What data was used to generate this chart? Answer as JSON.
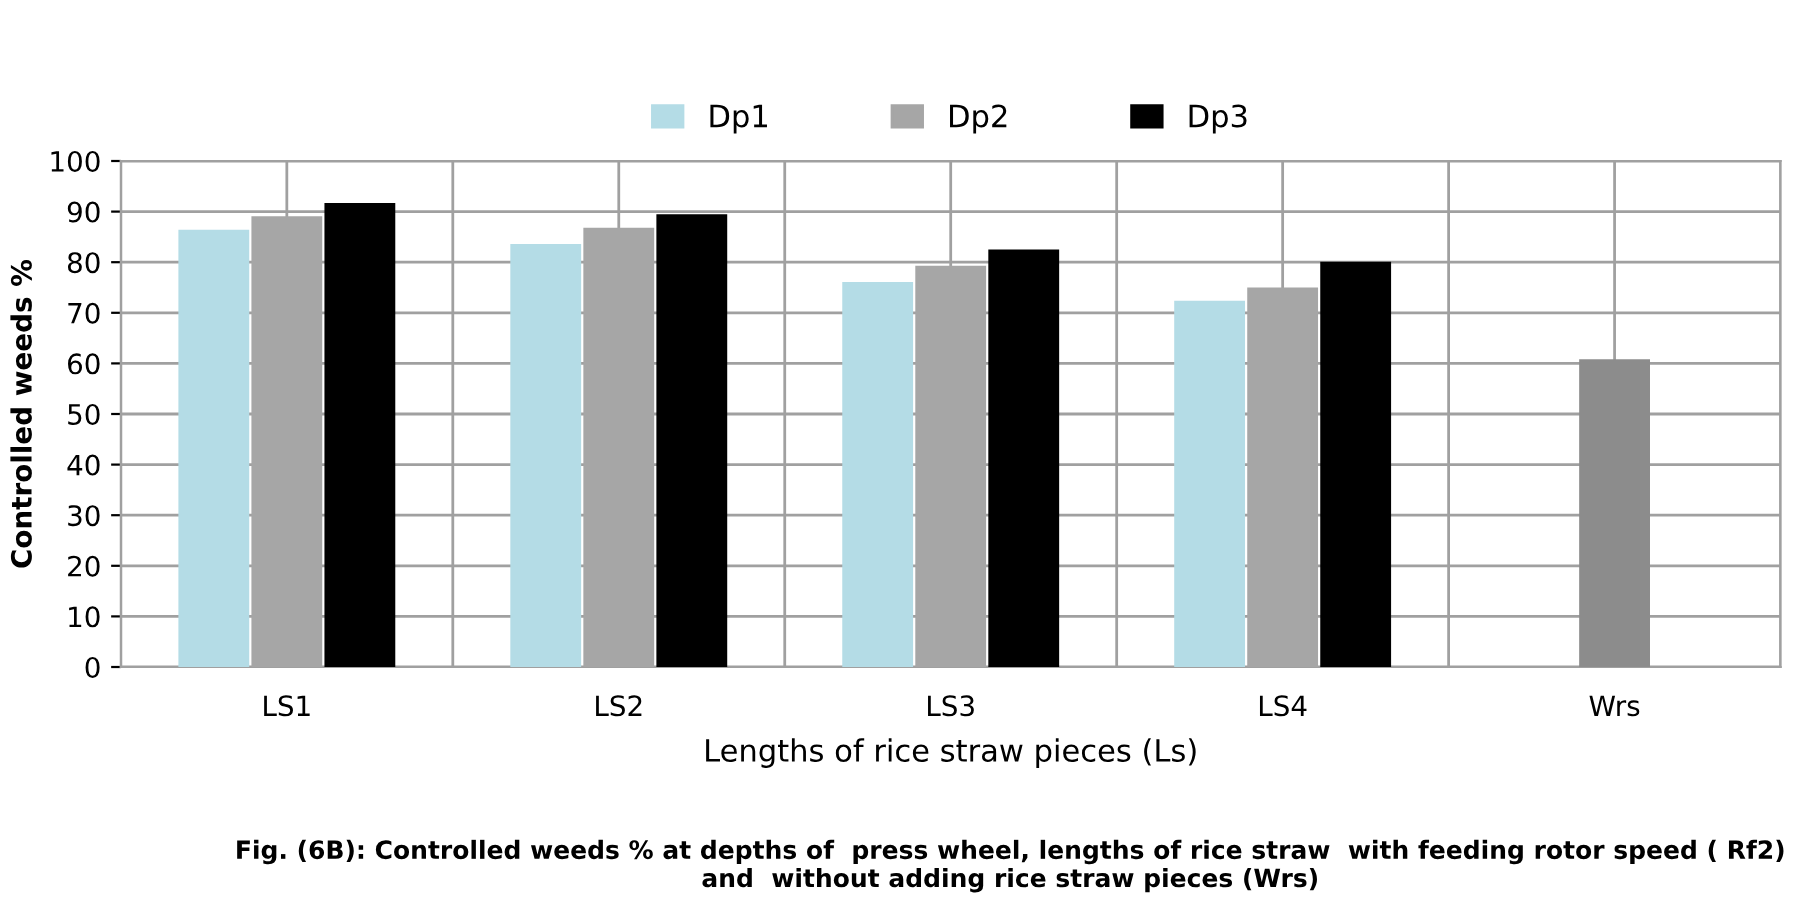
{
  "chart_data": {
    "type": "bar",
    "xlabel": "Lengths of rice straw pieces (Ls)",
    "ylabel": "Controlled weeds %",
    "categories": [
      "LS1",
      "LS2",
      "LS3",
      "LS4",
      "Wrs"
    ],
    "series": [
      {
        "name": "Dp1",
        "color": "#b4dce6",
        "values": [
          86.4,
          83.6,
          76.1,
          72.4,
          null
        ]
      },
      {
        "name": "Dp2",
        "color": "#a6a6a6",
        "colors": [
          "#a6a6a6",
          "#a6a6a6",
          "#a6a6a6",
          "#a6a6a6",
          "#8c8c8c"
        ],
        "values": [
          89.1,
          86.8,
          79.3,
          75.0,
          60.8
        ]
      },
      {
        "name": "Dp3",
        "color": "#000000",
        "values": [
          91.7,
          89.5,
          82.5,
          80.1,
          null
        ]
      }
    ],
    "ylim": [
      0,
      100
    ],
    "yticks": [
      0,
      10,
      20,
      30,
      40,
      50,
      60,
      70,
      80,
      90,
      100
    ],
    "grid": true,
    "legend": "top",
    "annotations": [
      "Fig. (6B): Controlled weeds % at depths of  press wheel, lengths of rice straw  with feeding rotor speed ( Rf2) and  without adding rice straw pieces (Wrs)"
    ]
  }
}
